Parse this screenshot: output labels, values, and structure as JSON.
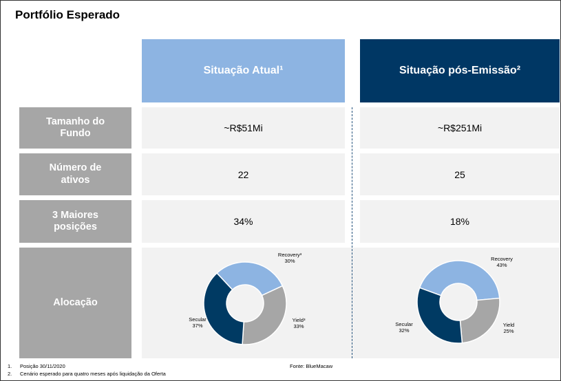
{
  "title": "Portfólio Esperado",
  "columns": [
    "Situação Atual¹",
    "Situação pós-Emissão²"
  ],
  "rows": [
    {
      "label": "Tamanho do Fundo",
      "cells": [
        "~R$51Mi",
        "~R$251Mi"
      ]
    },
    {
      "label": "Número de ativos",
      "cells": [
        "22",
        "25"
      ]
    },
    {
      "label": "3 Maiores posições",
      "cells": [
        "34%",
        "18%"
      ]
    }
  ],
  "allocation_label": "Alocação",
  "chart_data": [
    {
      "type": "pie",
      "categories": [
        "Recovery³",
        "Yield³",
        "Secular"
      ],
      "values": [
        30,
        33,
        37
      ],
      "value_labels": [
        "30%",
        "33%",
        "37%"
      ],
      "colors": [
        "#8db4e2",
        "#a6a6a6",
        "#003a63"
      ]
    },
    {
      "type": "pie",
      "categories": [
        "Recovery",
        "Yield",
        "Secular"
      ],
      "values": [
        43,
        25,
        32
      ],
      "value_labels": [
        "43%",
        "25%",
        "32%"
      ],
      "colors": [
        "#8db4e2",
        "#a6a6a6",
        "#003a63"
      ]
    }
  ],
  "footnotes": [
    {
      "number": "1.",
      "text": "Posição 30/11/2020"
    },
    {
      "number": "2.",
      "text": "Cenário esperado para quatro meses após liquidação da Oferta"
    }
  ],
  "source": "Fonte: BlueMacaw"
}
